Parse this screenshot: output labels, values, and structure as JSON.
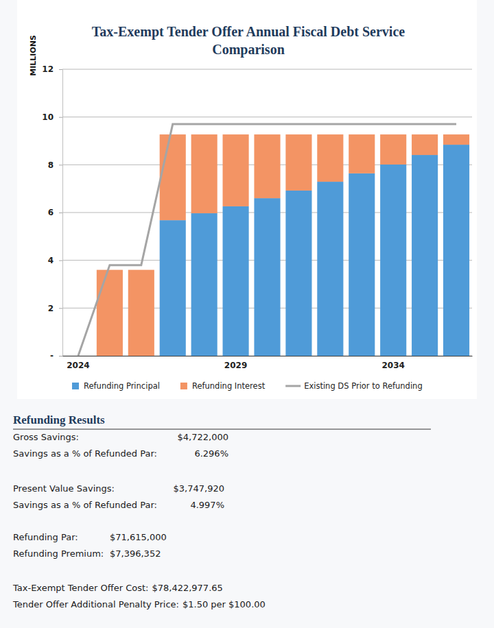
{
  "chart_data": {
    "type": "bar",
    "title": "Tax-Exempt Tender Offer Annual Fiscal Debt Service Comparison",
    "y_label": "MILLIONS",
    "stacked": true,
    "grid": true,
    "legend": "bottom",
    "categories": [
      "2024",
      null,
      null,
      null,
      null,
      "2029",
      null,
      null,
      null,
      null,
      "2034",
      null,
      null
    ],
    "ylim": [
      0,
      12
    ],
    "yticks": [
      {
        "value": 0,
        "label": "-"
      },
      2,
      4,
      6,
      8,
      10,
      12
    ],
    "series": [
      {
        "name": "Refunding Principal",
        "type": "bar",
        "color": "#4f9bd8",
        "values": [
          null,
          0,
          0,
          5.68,
          5.97,
          6.26,
          6.6,
          6.92,
          7.29,
          7.64,
          8.01,
          8.41,
          8.84
        ]
      },
      {
        "name": "Refunding Interest",
        "type": "bar",
        "color": "#f39464",
        "values": [
          null,
          3.6,
          3.6,
          3.59,
          3.3,
          3.01,
          2.67,
          2.35,
          1.98,
          1.63,
          1.26,
          0.86,
          0.43
        ]
      },
      {
        "name": "Existing DS Prior to Refunding",
        "type": "line",
        "color": "#a5a5a5",
        "values": [
          0,
          3.8,
          3.8,
          9.7,
          9.7,
          9.7,
          9.7,
          9.7,
          9.7,
          9.7,
          9.7,
          9.7,
          9.7
        ]
      }
    ]
  },
  "refunding_results": {
    "title": "Refunding Results",
    "groups": [
      [
        {
          "label": "Gross Savings:",
          "value": "$4,722,000"
        },
        {
          "label": "Savings as a % of Refunded Par:",
          "value": "6.296%"
        }
      ],
      [
        {
          "label": "Present Value Savings:",
          "value": "$3,747,920"
        },
        {
          "label": "Savings as a % of Refunded Par:",
          "value": "4.997%"
        }
      ],
      [
        {
          "label": "Refunding Par:",
          "value": "$71,615,000"
        },
        {
          "label": "Refunding Premium:",
          "value": "$7,396,352"
        }
      ],
      [
        {
          "label": "Tax-Exempt Tender Offer Cost:",
          "value": "$78,422,977.65"
        },
        {
          "label": "Tender Offer Additional Penalty Price:",
          "value": "$1.50 per $100.00"
        }
      ]
    ]
  }
}
